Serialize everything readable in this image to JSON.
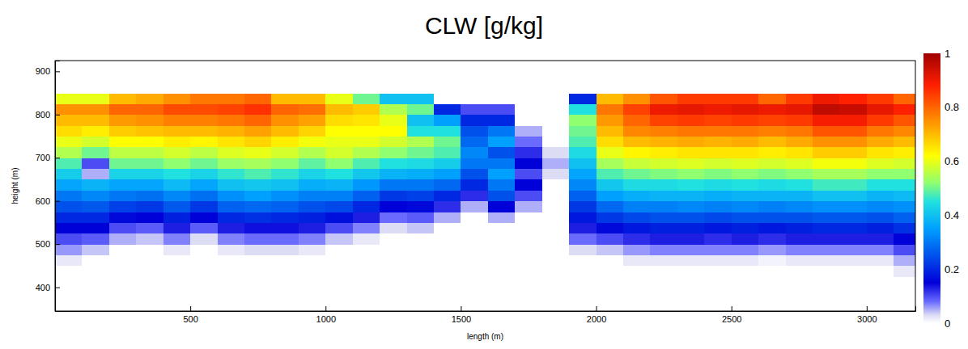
{
  "chart_data": {
    "type": "heatmap",
    "title": "CLW [g/kg]",
    "xlabel": "length (m)",
    "ylabel": "height (m)",
    "xlim": [
      0,
      3180
    ],
    "ylim": [
      345,
      925
    ],
    "xticks": [
      500,
      1000,
      1500,
      2000,
      2500,
      3000
    ],
    "yticks": [
      400,
      500,
      600,
      700,
      800,
      900
    ],
    "x": [
      50,
      150,
      250,
      350,
      450,
      550,
      650,
      750,
      850,
      950,
      1050,
      1150,
      1250,
      1350,
      1450,
      1550,
      1650,
      1750,
      1850,
      1950,
      2050,
      2150,
      2250,
      2350,
      2450,
      2550,
      2650,
      2750,
      2850,
      2950,
      3050,
      3150
    ],
    "y": [
      437.5,
      462.5,
      487.5,
      512.5,
      537.5,
      562.5,
      587.5,
      612.5,
      637.5,
      662.5,
      687.5,
      712.5,
      737.5,
      762.5,
      787.5,
      812.5,
      837.5,
      862.5
    ],
    "values": [
      [
        0,
        0,
        0,
        0,
        0,
        0,
        0,
        0,
        0,
        0,
        0,
        0,
        0,
        0,
        0,
        0,
        0,
        0,
        0,
        0,
        0,
        0,
        0,
        0,
        0,
        0,
        0,
        0,
        0,
        0,
        0,
        0.02
      ],
      [
        0.02,
        0,
        0,
        0,
        0,
        0,
        0,
        0,
        0,
        0,
        0,
        0,
        0,
        0,
        0,
        0,
        0,
        0,
        0,
        0,
        0,
        0.02,
        0.02,
        0.02,
        0.02,
        0.02,
        0.01,
        0.02,
        0.02,
        0.02,
        0.02,
        0.05
      ],
      [
        0.06,
        0.04,
        0,
        0,
        0.02,
        0,
        0.02,
        0.03,
        0.03,
        0.02,
        0,
        0,
        0,
        0,
        0,
        0,
        0,
        0,
        0,
        0.03,
        0.04,
        0.06,
        0.07,
        0.07,
        0.07,
        0.07,
        0.06,
        0.07,
        0.07,
        0.07,
        0.07,
        0.1
      ],
      [
        0.1,
        0.09,
        0.05,
        0.04,
        0.07,
        0.03,
        0.07,
        0.08,
        0.08,
        0.07,
        0.04,
        0.02,
        0,
        0,
        0,
        0,
        0,
        0,
        0,
        0.08,
        0.1,
        0.12,
        0.13,
        0.13,
        0.12,
        0.13,
        0.12,
        0.13,
        0.13,
        0.13,
        0.13,
        0.15
      ],
      [
        0.15,
        0.15,
        0.1,
        0.09,
        0.13,
        0.09,
        0.13,
        0.14,
        0.14,
        0.13,
        0.1,
        0.07,
        0.03,
        0.04,
        0,
        0,
        0,
        0,
        0,
        0.13,
        0.16,
        0.18,
        0.19,
        0.19,
        0.18,
        0.19,
        0.18,
        0.19,
        0.2,
        0.2,
        0.19,
        0.21
      ],
      [
        0.2,
        0.2,
        0.16,
        0.15,
        0.19,
        0.15,
        0.2,
        0.21,
        0.2,
        0.19,
        0.17,
        0.13,
        0.08,
        0.09,
        0.05,
        0,
        0.05,
        0,
        0,
        0.18,
        0.22,
        0.24,
        0.25,
        0.25,
        0.24,
        0.25,
        0.25,
        0.25,
        0.26,
        0.26,
        0.25,
        0.27
      ],
      [
        0.25,
        0.26,
        0.23,
        0.22,
        0.26,
        0.22,
        0.27,
        0.28,
        0.27,
        0.25,
        0.24,
        0.2,
        0.15,
        0.16,
        0.12,
        0.05,
        0.15,
        0.05,
        0,
        0.22,
        0.28,
        0.31,
        0.31,
        0.32,
        0.31,
        0.32,
        0.31,
        0.32,
        0.33,
        0.33,
        0.32,
        0.33
      ],
      [
        0.3,
        0.32,
        0.3,
        0.29,
        0.32,
        0.29,
        0.33,
        0.35,
        0.33,
        0.31,
        0.31,
        0.27,
        0.22,
        0.23,
        0.2,
        0.12,
        0.25,
        0.1,
        0,
        0.27,
        0.35,
        0.37,
        0.38,
        0.38,
        0.37,
        0.38,
        0.38,
        0.38,
        0.4,
        0.4,
        0.38,
        0.39
      ],
      [
        0.36,
        0.38,
        0.36,
        0.36,
        0.39,
        0.36,
        0.4,
        0.41,
        0.4,
        0.37,
        0.38,
        0.34,
        0.3,
        0.3,
        0.28,
        0.2,
        0.3,
        0.15,
        0,
        0.32,
        0.41,
        0.44,
        0.44,
        0.45,
        0.44,
        0.45,
        0.44,
        0.45,
        0.47,
        0.47,
        0.45,
        0.45
      ],
      [
        0.42,
        0.05,
        0.43,
        0.43,
        0.45,
        0.43,
        0.46,
        0.48,
        0.46,
        0.43,
        0.45,
        0.41,
        0.38,
        0.37,
        0.35,
        0.25,
        0.35,
        0.1,
        0.03,
        0.36,
        0.48,
        0.5,
        0.51,
        0.52,
        0.51,
        0.52,
        0.51,
        0.52,
        0.54,
        0.54,
        0.52,
        0.52
      ],
      [
        0.48,
        0.1,
        0.5,
        0.5,
        0.52,
        0.5,
        0.53,
        0.54,
        0.52,
        0.49,
        0.52,
        0.48,
        0.45,
        0.44,
        0.42,
        0.3,
        0.3,
        0.15,
        0.05,
        0.4,
        0.54,
        0.57,
        0.58,
        0.59,
        0.58,
        0.59,
        0.58,
        0.59,
        0.61,
        0.61,
        0.59,
        0.58
      ],
      [
        0.55,
        0.5,
        0.56,
        0.56,
        0.58,
        0.56,
        0.59,
        0.6,
        0.58,
        0.55,
        0.58,
        0.55,
        0.52,
        0.5,
        0.48,
        0.32,
        0.25,
        0.12,
        0.03,
        0.44,
        0.6,
        0.63,
        0.64,
        0.65,
        0.65,
        0.65,
        0.64,
        0.65,
        0.68,
        0.68,
        0.65,
        0.64
      ],
      [
        0.6,
        0.58,
        0.62,
        0.62,
        0.64,
        0.63,
        0.65,
        0.67,
        0.64,
        0.61,
        0.6,
        0.6,
        0.58,
        0.55,
        0.5,
        0.28,
        0.35,
        0.08,
        0,
        0.48,
        0.66,
        0.7,
        0.71,
        0.72,
        0.71,
        0.72,
        0.7,
        0.72,
        0.75,
        0.75,
        0.72,
        0.7
      ],
      [
        0.66,
        0.64,
        0.68,
        0.69,
        0.7,
        0.7,
        0.71,
        0.73,
        0.7,
        0.67,
        0.62,
        0.62,
        0.62,
        0.45,
        0.45,
        0.25,
        0.3,
        0.05,
        0,
        0.5,
        0.7,
        0.76,
        0.77,
        0.78,
        0.78,
        0.78,
        0.77,
        0.78,
        0.82,
        0.82,
        0.78,
        0.76
      ],
      [
        0.7,
        0.7,
        0.74,
        0.75,
        0.77,
        0.77,
        0.78,
        0.8,
        0.75,
        0.73,
        0.66,
        0.65,
        0.6,
        0.4,
        0.35,
        0.2,
        0.2,
        0,
        0,
        0.52,
        0.74,
        0.8,
        0.84,
        0.85,
        0.84,
        0.85,
        0.84,
        0.85,
        0.89,
        0.89,
        0.85,
        0.82
      ],
      [
        0.75,
        0.75,
        0.8,
        0.8,
        0.83,
        0.83,
        0.84,
        0.86,
        0.8,
        0.79,
        0.7,
        0.68,
        0.55,
        0.5,
        0.2,
        0.1,
        0.1,
        0,
        0,
        0.45,
        0.78,
        0.84,
        0.9,
        0.91,
        0.9,
        0.91,
        0.9,
        0.91,
        0.96,
        0.95,
        0.91,
        0.88
      ],
      [
        0.6,
        0.6,
        0.7,
        0.72,
        0.75,
        0.78,
        0.78,
        0.8,
        0.7,
        0.7,
        0.6,
        0.5,
        0.4,
        0.4,
        0,
        0,
        0,
        0,
        0,
        0.2,
        0.7,
        0.75,
        0.82,
        0.85,
        0.85,
        0.85,
        0.8,
        0.85,
        0.9,
        0.88,
        0.85,
        0.8
      ],
      [
        0,
        0,
        0,
        0,
        0,
        0,
        0,
        0,
        0,
        0,
        0,
        0,
        0,
        0,
        0,
        0,
        0,
        0,
        0,
        0,
        0,
        0,
        0,
        0,
        0,
        0,
        0,
        0,
        0,
        0,
        0,
        0
      ]
    ],
    "colorbar": {
      "range": [
        0,
        1
      ],
      "ticks": [
        0,
        0.2,
        0.4,
        0.6,
        0.8,
        1
      ]
    }
  }
}
